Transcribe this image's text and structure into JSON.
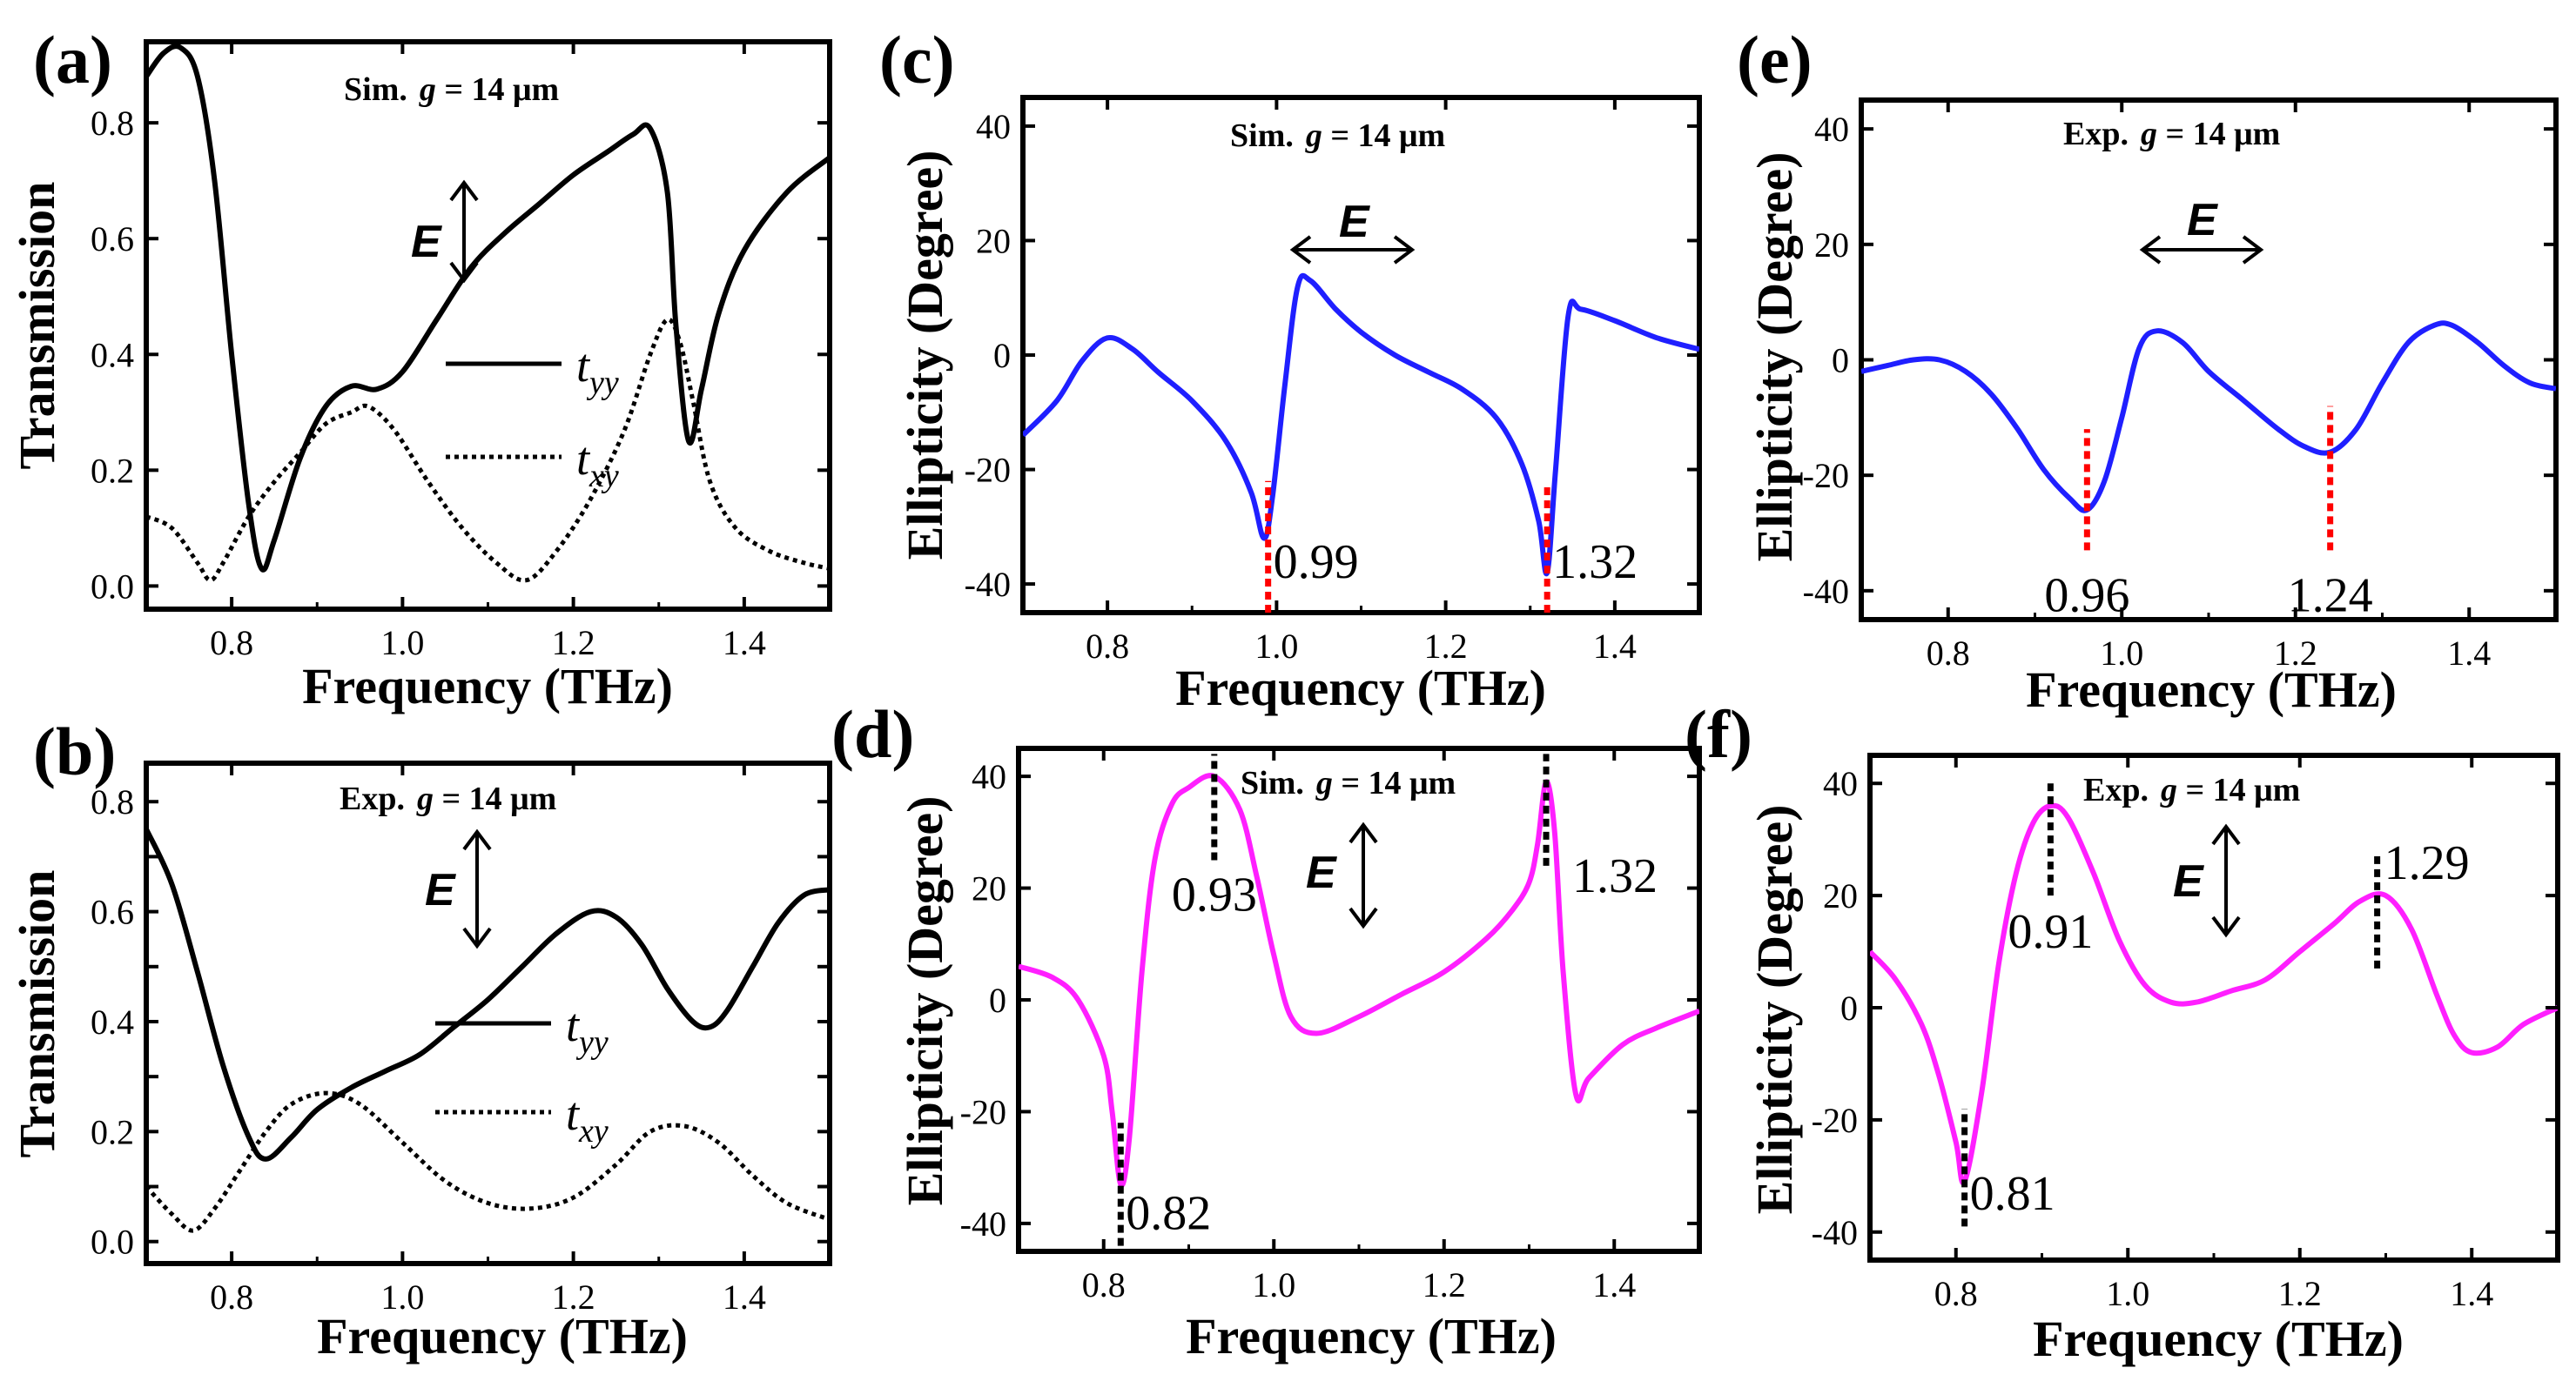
{
  "figure": {
    "labels": [
      "(a)",
      "(b)",
      "(c)",
      "(d)",
      "(e)",
      "(f)"
    ]
  },
  "chart_data": [
    {
      "type": "line",
      "panel": "(a)",
      "title": "Sim. g = 14 μm",
      "title_prefix": "Sim.",
      "title_var": "g",
      "title_rest": " = 14 μm",
      "efield_label": "E",
      "efield_orientation": "vertical",
      "xlabel": "Frequency (THz)",
      "ylabel": "Transmission",
      "xlim": [
        0.7,
        1.5
      ],
      "ylim": [
        -0.04,
        0.94
      ],
      "xticks": [
        0.8,
        1.0,
        1.2,
        1.4
      ],
      "xtick_labels": [
        "0.8",
        "1.0",
        "1.2",
        "1.4"
      ],
      "yticks": [
        0.0,
        0.2,
        0.4,
        0.6,
        0.8
      ],
      "ytick_labels": [
        "0.0",
        "0.2",
        "0.4",
        "0.6",
        "0.8"
      ],
      "series": [
        {
          "name": "t_yy",
          "legend_main": "t",
          "legend_sub": "yy",
          "style": "solid",
          "color": "#000000",
          "x": [
            0.7,
            0.72,
            0.74,
            0.76,
            0.78,
            0.8,
            0.82,
            0.835,
            0.85,
            0.88,
            0.91,
            0.94,
            0.97,
            1.0,
            1.04,
            1.08,
            1.12,
            1.16,
            1.2,
            1.24,
            1.27,
            1.29,
            1.31,
            1.32,
            1.335,
            1.35,
            1.37,
            1.4,
            1.45,
            1.5
          ],
          "y": [
            0.88,
            0.92,
            0.93,
            0.88,
            0.7,
            0.4,
            0.14,
            0.03,
            0.08,
            0.22,
            0.31,
            0.345,
            0.34,
            0.37,
            0.46,
            0.55,
            0.61,
            0.66,
            0.71,
            0.75,
            0.78,
            0.79,
            0.68,
            0.45,
            0.25,
            0.34,
            0.47,
            0.58,
            0.68,
            0.74
          ]
        },
        {
          "name": "t_xy",
          "legend_main": "t",
          "legend_sub": "xy",
          "style": "dotted",
          "color": "#000000",
          "x": [
            0.7,
            0.73,
            0.76,
            0.775,
            0.79,
            0.82,
            0.85,
            0.88,
            0.91,
            0.94,
            0.96,
            0.99,
            1.03,
            1.07,
            1.11,
            1.145,
            1.18,
            1.22,
            1.26,
            1.29,
            1.31,
            1.325,
            1.34,
            1.36,
            1.39,
            1.43,
            1.47,
            1.5
          ],
          "y": [
            0.12,
            0.1,
            0.04,
            0.01,
            0.04,
            0.12,
            0.18,
            0.23,
            0.28,
            0.3,
            0.31,
            0.27,
            0.18,
            0.1,
            0.04,
            0.01,
            0.06,
            0.15,
            0.27,
            0.4,
            0.46,
            0.42,
            0.32,
            0.18,
            0.1,
            0.06,
            0.04,
            0.03
          ]
        }
      ]
    },
    {
      "type": "line",
      "panel": "(b)",
      "title": "Exp. g = 14 μm",
      "title_prefix": "Exp.",
      "title_var": "g",
      "title_rest": " = 14 μm",
      "efield_label": "E",
      "efield_orientation": "vertical",
      "xlabel": "Frequency (THz)",
      "ylabel": "Transmission",
      "xlim": [
        0.7,
        1.5
      ],
      "ylim": [
        -0.04,
        0.87
      ],
      "xticks": [
        0.8,
        1.0,
        1.2,
        1.4
      ],
      "xtick_labels": [
        "0.8",
        "1.0",
        "1.2",
        "1.4"
      ],
      "yticks": [
        0.0,
        0.1,
        0.2,
        0.3,
        0.4,
        0.5,
        0.6,
        0.7,
        0.8
      ],
      "ytick_labels": [
        "0.0",
        "",
        "0.2",
        "",
        "0.4",
        "",
        "0.6",
        "",
        "0.8"
      ],
      "series": [
        {
          "name": "t_yy",
          "legend_main": "t",
          "legend_sub": "yy",
          "style": "solid",
          "color": "#000000",
          "x": [
            0.7,
            0.73,
            0.76,
            0.79,
            0.82,
            0.84,
            0.87,
            0.9,
            0.94,
            0.98,
            1.02,
            1.06,
            1.1,
            1.14,
            1.18,
            1.22,
            1.25,
            1.28,
            1.31,
            1.34,
            1.36,
            1.38,
            1.41,
            1.44,
            1.47,
            1.5
          ],
          "y": [
            0.75,
            0.65,
            0.49,
            0.32,
            0.19,
            0.15,
            0.19,
            0.24,
            0.28,
            0.31,
            0.34,
            0.39,
            0.44,
            0.5,
            0.56,
            0.6,
            0.59,
            0.54,
            0.46,
            0.4,
            0.39,
            0.42,
            0.5,
            0.58,
            0.63,
            0.64
          ]
        },
        {
          "name": "t_xy",
          "legend_main": "t",
          "legend_sub": "xy",
          "style": "dotted",
          "color": "#000000",
          "x": [
            0.7,
            0.73,
            0.755,
            0.78,
            0.81,
            0.84,
            0.87,
            0.91,
            0.95,
            1.0,
            1.05,
            1.1,
            1.15,
            1.2,
            1.25,
            1.29,
            1.33,
            1.37,
            1.41,
            1.45,
            1.5
          ],
          "y": [
            0.1,
            0.05,
            0.02,
            0.06,
            0.13,
            0.2,
            0.25,
            0.27,
            0.25,
            0.18,
            0.11,
            0.07,
            0.06,
            0.08,
            0.14,
            0.2,
            0.21,
            0.18,
            0.12,
            0.07,
            0.04
          ]
        }
      ]
    },
    {
      "type": "line",
      "panel": "(c)",
      "title": "Sim. g = 14 μm",
      "title_prefix": "Sim.",
      "title_var": "g",
      "title_rest": " = 14 μm",
      "efield_label": "E",
      "efield_orientation": "horizontal",
      "xlabel": "Frequency (THz)",
      "ylabel": "Ellipticity (Degree)",
      "xlim": [
        0.7,
        1.5
      ],
      "ylim": [
        -45,
        45
      ],
      "xticks": [
        0.8,
        1.0,
        1.2,
        1.4
      ],
      "xtick_labels": [
        "0.8",
        "1.0",
        "1.2",
        "1.4"
      ],
      "yticks": [
        -40,
        -20,
        0,
        20,
        40
      ],
      "ytick_labels": [
        "-40",
        "-20",
        "0",
        "20",
        "40"
      ],
      "color": "#1f1fff",
      "series": [
        {
          "name": "Ellipticity",
          "style": "solid",
          "color": "#1f1fff",
          "x": [
            0.7,
            0.74,
            0.77,
            0.8,
            0.83,
            0.86,
            0.9,
            0.94,
            0.97,
            0.985,
            0.995,
            1.01,
            1.025,
            1.04,
            1.07,
            1.1,
            1.14,
            1.18,
            1.22,
            1.26,
            1.29,
            1.31,
            1.32,
            1.33,
            1.345,
            1.36,
            1.4,
            1.45,
            1.5
          ],
          "y": [
            -14,
            -8,
            -1,
            3,
            1,
            -3,
            -8,
            -15,
            -24,
            -32,
            -25,
            -5,
            12,
            13,
            8,
            4,
            0,
            -3,
            -6,
            -11,
            -19,
            -29,
            -38,
            -20,
            7,
            8,
            6,
            3,
            1
          ]
        }
      ],
      "markers": [
        {
          "x": 0.99,
          "label": "0.99",
          "y_from": -45,
          "y_to": -22,
          "color": "#ff0000"
        },
        {
          "x": 1.32,
          "label": "1.32",
          "y_from": -45,
          "y_to": -23,
          "color": "#ff0000"
        }
      ]
    },
    {
      "type": "line",
      "panel": "(d)",
      "title": "Sim. g = 14 μm",
      "title_prefix": "Sim.",
      "title_var": "g",
      "title_rest": " = 14 μm",
      "efield_label": "E",
      "efield_orientation": "vertical",
      "xlabel": "Frequency (THz)",
      "ylabel": "Ellipticity (Degree)",
      "xlim": [
        0.7,
        1.5
      ],
      "ylim": [
        -45,
        45
      ],
      "xticks": [
        0.8,
        1.0,
        1.2,
        1.4
      ],
      "xtick_labels": [
        "0.8",
        "1.0",
        "1.2",
        "1.4"
      ],
      "yticks": [
        -40,
        -20,
        0,
        20,
        40
      ],
      "ytick_labels": [
        "-40",
        "-20",
        "0",
        "20",
        "40"
      ],
      "color": "#ff1fff",
      "series": [
        {
          "name": "Ellipticity",
          "style": "solid",
          "color": "#ff1fff",
          "x": [
            0.7,
            0.74,
            0.77,
            0.8,
            0.81,
            0.82,
            0.83,
            0.845,
            0.86,
            0.88,
            0.9,
            0.93,
            0.96,
            0.98,
            1.0,
            1.02,
            1.05,
            1.1,
            1.15,
            1.2,
            1.25,
            1.28,
            1.3,
            1.31,
            1.32,
            1.33,
            1.34,
            1.355,
            1.37,
            1.41,
            1.45,
            1.5
          ],
          "y": [
            6,
            4,
            0,
            -10,
            -20,
            -33,
            -25,
            5,
            25,
            35,
            38,
            40,
            34,
            22,
            8,
            -3,
            -6,
            -3,
            1,
            5,
            11,
            16,
            21,
            28,
            39,
            30,
            5,
            -17,
            -14,
            -8,
            -5,
            -2
          ]
        }
      ],
      "markers": [
        {
          "x": 0.82,
          "label": "0.82",
          "y_from": -44,
          "y_to": -22,
          "color": "#000000"
        },
        {
          "x": 0.93,
          "label": "0.93",
          "y_from": 25,
          "y_to": 44,
          "color": "#000000"
        },
        {
          "x": 1.32,
          "label": "1.32",
          "y_from": 24,
          "y_to": 44,
          "color": "#000000"
        }
      ]
    },
    {
      "type": "line",
      "panel": "(e)",
      "title": "Exp. g = 14 μm",
      "title_prefix": "Exp.",
      "title_var": "g",
      "title_rest": " = 14 μm",
      "efield_label": "E",
      "efield_orientation": "horizontal",
      "xlabel": "Frequency (THz)",
      "ylabel": "Ellipticity (Degree)",
      "xlim": [
        0.7,
        1.5
      ],
      "ylim": [
        -45,
        45
      ],
      "xticks": [
        0.8,
        1.0,
        1.2,
        1.4
      ],
      "xtick_labels": [
        "0.8",
        "1.0",
        "1.2",
        "1.4"
      ],
      "yticks": [
        -40,
        -20,
        0,
        20,
        40
      ],
      "ytick_labels": [
        "-40",
        "-20",
        "0",
        "20",
        "40"
      ],
      "color": "#1f1fff",
      "series": [
        {
          "name": "Ellipticity",
          "style": "solid",
          "color": "#1f1fff",
          "x": [
            0.7,
            0.73,
            0.76,
            0.79,
            0.82,
            0.85,
            0.88,
            0.91,
            0.94,
            0.96,
            0.98,
            1.0,
            1.02,
            1.04,
            1.07,
            1.1,
            1.14,
            1.18,
            1.21,
            1.24,
            1.27,
            1.3,
            1.33,
            1.36,
            1.38,
            1.41,
            1.44,
            1.47,
            1.5
          ],
          "y": [
            -2,
            -1,
            0,
            0,
            -2,
            -6,
            -12,
            -19,
            -24,
            -26,
            -21,
            -10,
            2,
            5,
            3,
            -2,
            -7,
            -12,
            -15,
            -16,
            -12,
            -4,
            3,
            6,
            6,
            3,
            -1,
            -4,
            -5
          ]
        }
      ],
      "markers": [
        {
          "x": 0.96,
          "label": "0.96",
          "y_from": -33,
          "y_to": -12,
          "color": "#ff0000"
        },
        {
          "x": 1.24,
          "label": "1.24",
          "y_from": -33,
          "y_to": -8,
          "color": "#ff0000"
        }
      ]
    },
    {
      "type": "line",
      "panel": "(f)",
      "title": "Exp. g = 14 μm",
      "title_prefix": "Exp.",
      "title_var": "g",
      "title_rest": " = 14 μm",
      "efield_label": "E",
      "efield_orientation": "vertical",
      "xlabel": "Frequency (THz)",
      "ylabel": "Ellipticity (Degree)",
      "xlim": [
        0.7,
        1.5
      ],
      "ylim": [
        -45,
        45
      ],
      "xticks": [
        0.8,
        1.0,
        1.2,
        1.4
      ],
      "xtick_labels": [
        "0.8",
        "1.0",
        "1.2",
        "1.4"
      ],
      "yticks": [
        -40,
        -20,
        0,
        20,
        40
      ],
      "ytick_labels": [
        "-40",
        "-20",
        "0",
        "20",
        "40"
      ],
      "color": "#ff1fff",
      "series": [
        {
          "name": "Ellipticity",
          "style": "solid",
          "color": "#ff1fff",
          "x": [
            0.7,
            0.73,
            0.76,
            0.78,
            0.8,
            0.81,
            0.83,
            0.85,
            0.87,
            0.89,
            0.91,
            0.93,
            0.96,
            0.99,
            1.02,
            1.05,
            1.08,
            1.12,
            1.16,
            1.2,
            1.24,
            1.27,
            1.3,
            1.33,
            1.36,
            1.38,
            1.4,
            1.43,
            1.46,
            1.5
          ],
          "y": [
            10,
            5,
            -3,
            -12,
            -24,
            -31,
            -15,
            8,
            24,
            33,
            36,
            34,
            24,
            12,
            4,
            1,
            1,
            3,
            5,
            10,
            15,
            19,
            20,
            14,
            2,
            -5,
            -8,
            -7,
            -3,
            0
          ]
        }
      ],
      "markers": [
        {
          "x": 0.81,
          "label": "0.81",
          "y_from": -39,
          "y_to": -18,
          "color": "#000000"
        },
        {
          "x": 0.91,
          "label": "0.91",
          "y_from": 20,
          "y_to": 40,
          "color": "#000000"
        },
        {
          "x": 1.29,
          "label": "1.29",
          "y_from": 7,
          "y_to": 27,
          "color": "#000000"
        }
      ]
    }
  ]
}
